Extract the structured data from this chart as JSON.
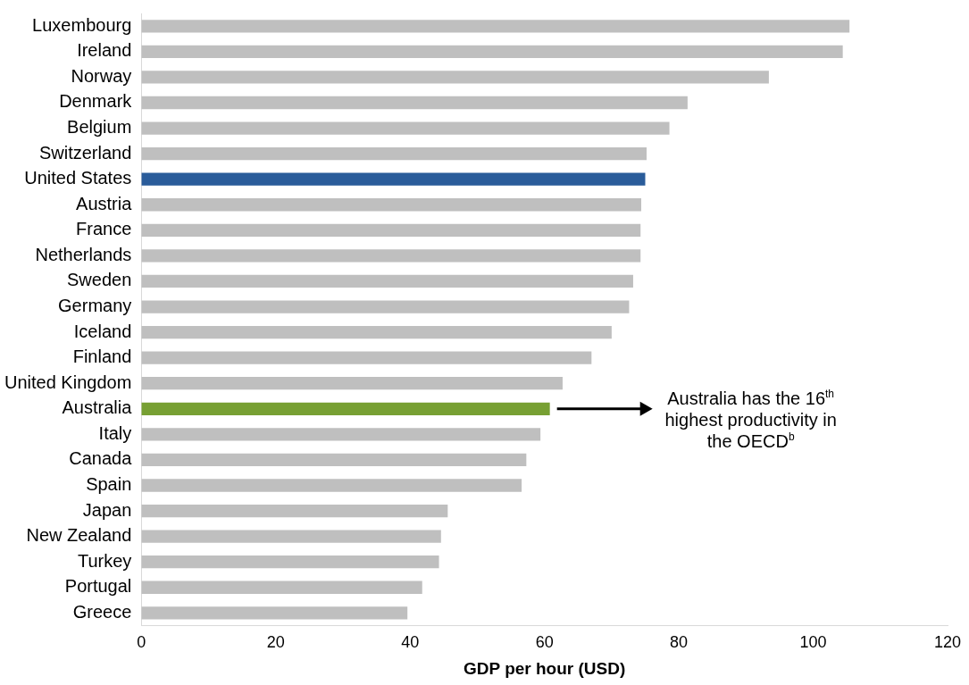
{
  "chart_data": {
    "type": "bar",
    "orientation": "horizontal",
    "xlabel": "GDP per hour (USD)",
    "categories": [
      "Luxembourg",
      "Ireland",
      "Norway",
      "Denmark",
      "Belgium",
      "Switzerland",
      "United States",
      "Austria",
      "France",
      "Netherlands",
      "Sweden",
      "Germany",
      "Iceland",
      "Finland",
      "United Kingdom",
      "Australia",
      "Italy",
      "Canada",
      "Spain",
      "Japan",
      "New Zealand",
      "Turkey",
      "Portugal",
      "Greece"
    ],
    "values": [
      105.4,
      104.4,
      93.4,
      81.3,
      78.6,
      75.2,
      75.0,
      74.4,
      74.3,
      74.3,
      73.2,
      72.6,
      70.0,
      67.0,
      62.7,
      60.8,
      59.4,
      57.3,
      56.6,
      45.6,
      44.6,
      44.3,
      41.8,
      39.6
    ],
    "colors": [
      "#bfbfbf",
      "#bfbfbf",
      "#bfbfbf",
      "#bfbfbf",
      "#bfbfbf",
      "#bfbfbf",
      "#2a5c9a",
      "#bfbfbf",
      "#bfbfbf",
      "#bfbfbf",
      "#bfbfbf",
      "#bfbfbf",
      "#bfbfbf",
      "#bfbfbf",
      "#bfbfbf",
      "#77a033",
      "#bfbfbf",
      "#bfbfbf",
      "#bfbfbf",
      "#bfbfbf",
      "#bfbfbf",
      "#bfbfbf",
      "#bfbfbf",
      "#bfbfbf"
    ],
    "xlim": [
      0,
      120
    ],
    "xticks": [
      0,
      20,
      40,
      60,
      80,
      100,
      120
    ],
    "grid": false,
    "legend": false,
    "annotations": [
      {
        "text": "Australia has the 16$^{th}$ highest productivity in the OECD$^{b}$",
        "x": 60.8,
        "y": "Australia"
      }
    ]
  }
}
